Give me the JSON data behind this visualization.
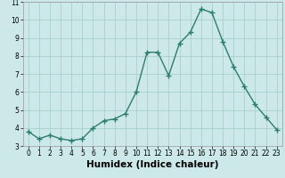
{
  "title": "",
  "xlabel": "Humidex (Indice chaleur)",
  "ylabel": "",
  "x": [
    0,
    1,
    2,
    3,
    4,
    5,
    6,
    7,
    8,
    9,
    10,
    11,
    12,
    13,
    14,
    15,
    16,
    17,
    18,
    19,
    20,
    21,
    22,
    23
  ],
  "y": [
    3.8,
    3.4,
    3.6,
    3.4,
    3.3,
    3.4,
    4.0,
    4.4,
    4.5,
    4.8,
    6.0,
    8.2,
    8.2,
    6.9,
    8.7,
    9.3,
    10.6,
    10.4,
    8.8,
    7.4,
    6.3,
    5.3,
    4.6,
    3.9
  ],
  "line_color": "#2d7d6e",
  "marker": "+",
  "bg_color": "#cce8e8",
  "grid_color": "#aacece",
  "plot_bg": "#cce8e8",
  "xlim": [
    -0.5,
    23.5
  ],
  "ylim": [
    3,
    11
  ],
  "yticks": [
    3,
    4,
    5,
    6,
    7,
    8,
    9,
    10,
    11
  ],
  "xticks": [
    0,
    1,
    2,
    3,
    4,
    5,
    6,
    7,
    8,
    9,
    10,
    11,
    12,
    13,
    14,
    15,
    16,
    17,
    18,
    19,
    20,
    21,
    22,
    23
  ],
  "tick_labelsize": 5.5,
  "xlabel_fontsize": 7.5,
  "line_width": 1.0,
  "marker_size": 4,
  "marker_ew": 1.0
}
